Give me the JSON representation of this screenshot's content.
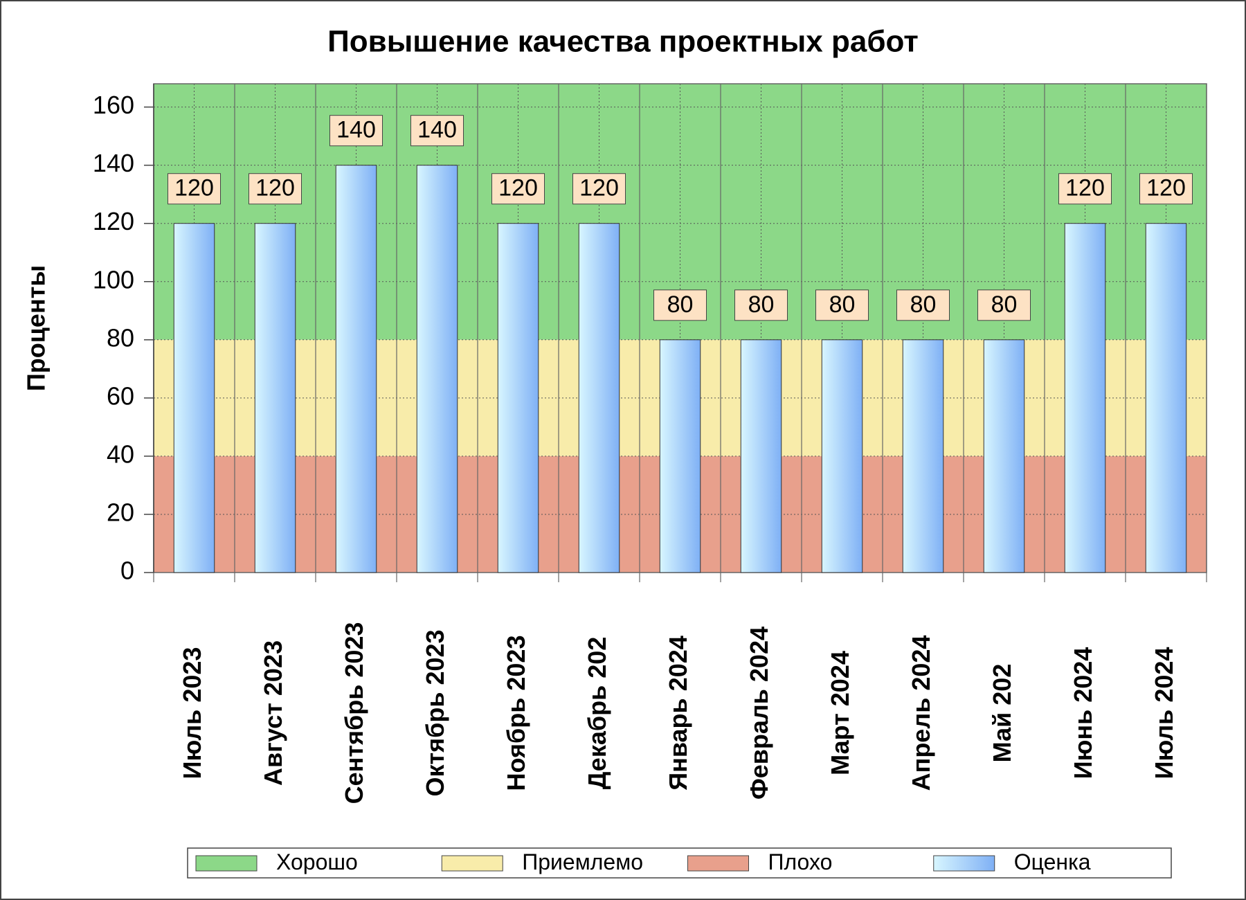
{
  "chart_data": {
    "type": "bar",
    "title": "Повышение качества проектных работ",
    "ylabel": "Проценты",
    "categories": [
      "Июль 2023",
      "Август 2023",
      "Сентябрь 2023",
      "Октябрь 2023",
      "Ноябрь 2023",
      "Декабрь 202",
      "Январь 2024",
      "Февраль 2024",
      "Март 2024",
      "Апрель 2024",
      "Май 202",
      "Июнь 2024",
      "Июль 2024"
    ],
    "bands": [
      {
        "name": "Хорошо",
        "color": "#8cd888",
        "from": 80,
        "to": 168
      },
      {
        "name": "Приемлемо",
        "color": "#f8ecaa",
        "from": 40,
        "to": 80
      },
      {
        "name": "Плохо",
        "color": "#e8a08c",
        "from": 0,
        "to": 40
      }
    ],
    "series": [
      {
        "name": "Оценка",
        "color": "#7fb0f5",
        "values": [
          120,
          120,
          140,
          140,
          120,
          120,
          80,
          80,
          80,
          80,
          80,
          120,
          120
        ]
      }
    ],
    "ylim": [
      0,
      168
    ],
    "yticks": [
      0,
      20,
      40,
      60,
      80,
      100,
      120,
      140,
      160
    ],
    "grid": true
  }
}
